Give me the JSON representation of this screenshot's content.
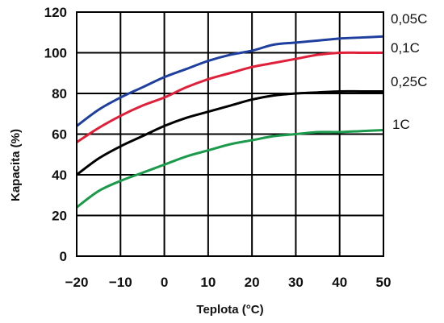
{
  "chart_data": {
    "type": "line",
    "title": "",
    "xlabel": "Teplota (°C)",
    "ylabel": "Kapacita (%)",
    "xlim": [
      -20,
      50
    ],
    "ylim": [
      0,
      120
    ],
    "xticks": [
      -20,
      -10,
      0,
      10,
      20,
      30,
      40,
      50
    ],
    "yticks": [
      0,
      20,
      40,
      60,
      80,
      100,
      120
    ],
    "grid": true,
    "legend": "right",
    "x": [
      -20,
      -15,
      -10,
      -5,
      0,
      5,
      10,
      15,
      20,
      25,
      30,
      35,
      40,
      45,
      50
    ],
    "series": [
      {
        "name": "0,05C",
        "color": "#1f3f9f",
        "values": [
          64,
          72,
          78,
          83,
          88,
          92,
          96,
          99,
          101,
          104,
          105,
          106,
          107,
          107.5,
          108
        ]
      },
      {
        "name": "0,1C",
        "color": "#e0203a",
        "values": [
          56,
          63,
          69,
          74,
          78,
          83,
          87,
          90,
          93,
          95,
          97,
          99,
          100,
          100,
          100
        ]
      },
      {
        "name": "0,25C",
        "color": "#000000",
        "values": [
          40,
          48,
          54,
          59,
          64,
          68,
          71,
          74,
          77,
          79,
          80,
          80.5,
          81,
          81,
          81
        ]
      },
      {
        "name": "1C",
        "color": "#1a9a4a",
        "values": [
          24,
          32,
          37,
          41,
          45,
          49,
          52,
          55,
          57,
          59,
          60,
          61,
          61,
          61.5,
          62
        ]
      }
    ]
  }
}
